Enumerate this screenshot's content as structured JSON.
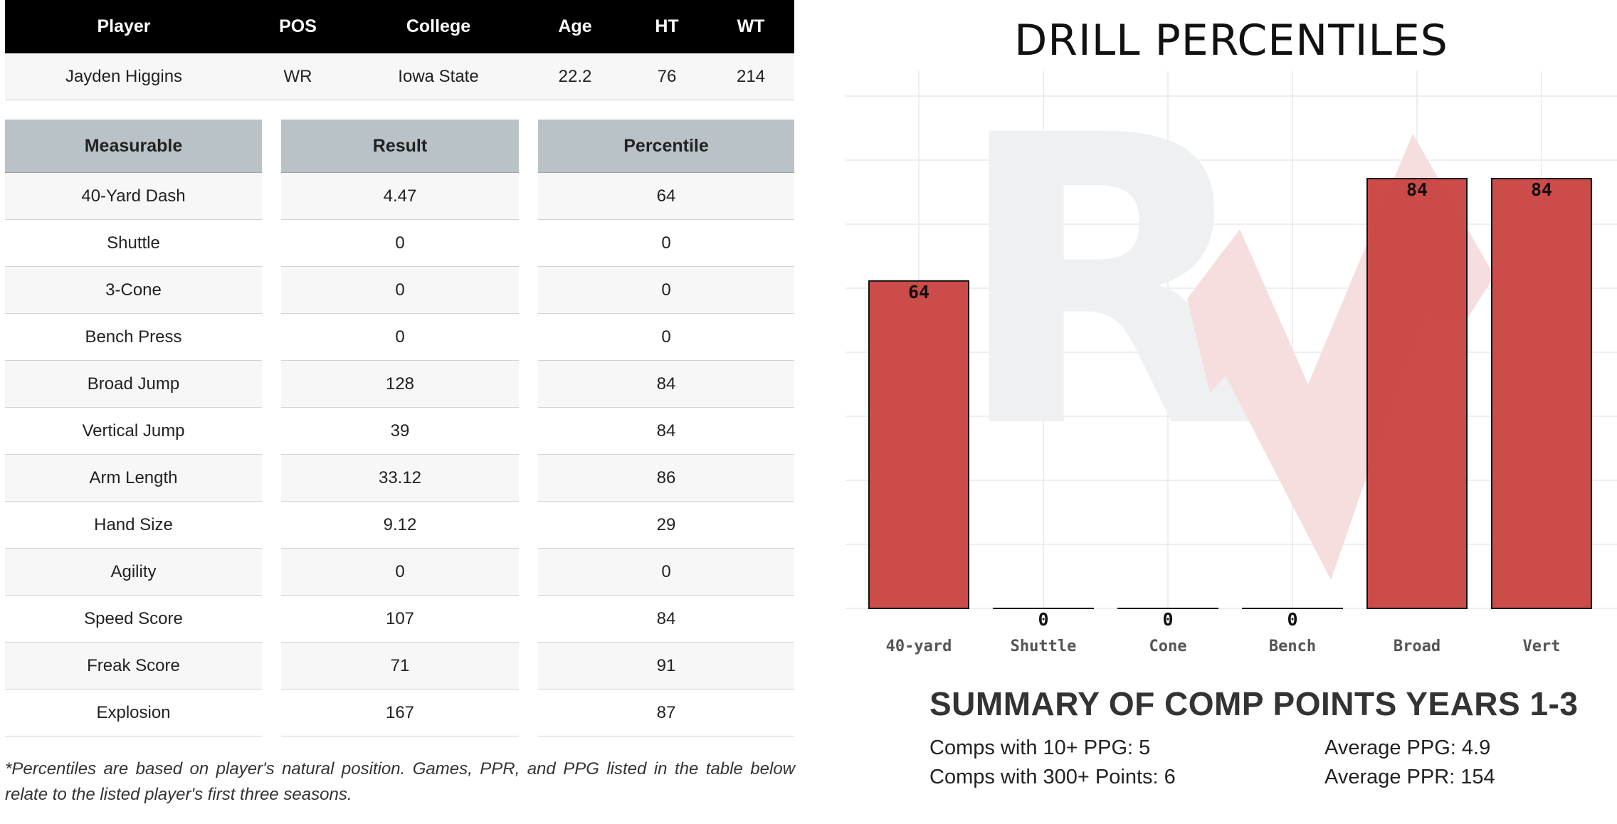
{
  "player_table": {
    "headers": [
      "Player",
      "POS",
      "College",
      "Age",
      "HT",
      "WT"
    ],
    "row": [
      "Jayden Higgins",
      "WR",
      "Iowa State",
      "22.2",
      "76",
      "214"
    ]
  },
  "measurables": {
    "headers": [
      "Measurable",
      "Result",
      "Percentile"
    ],
    "rows": [
      [
        "40-Yard Dash",
        "4.47",
        "64"
      ],
      [
        "Shuttle",
        "0",
        "0"
      ],
      [
        "3-Cone",
        "0",
        "0"
      ],
      [
        "Bench Press",
        "0",
        "0"
      ],
      [
        "Broad Jump",
        "128",
        "84"
      ],
      [
        "Vertical Jump",
        "39",
        "84"
      ],
      [
        "Arm Length",
        "33.12",
        "86"
      ],
      [
        "Hand Size",
        "9.12",
        "29"
      ],
      [
        "Agility",
        "0",
        "0"
      ],
      [
        "Speed Score",
        "107",
        "84"
      ],
      [
        "Freak Score",
        "71",
        "91"
      ],
      [
        "Explosion",
        "167",
        "87"
      ]
    ]
  },
  "footnote": "*Percentiles are based on player's natural position. Games, PPR, and PPG listed in the table below relate to the listed player's first three seasons.",
  "chart_data": {
    "type": "bar",
    "title": "DRILL PERCENTILES",
    "categories": [
      "40-yard",
      "Shuttle",
      "Cone",
      "Bench",
      "Broad",
      "Vert"
    ],
    "values": [
      64,
      0,
      0,
      0,
      84,
      84
    ],
    "data_labels": [
      "64",
      "0",
      "0",
      "0",
      "84",
      "84"
    ],
    "ylim": [
      0,
      100
    ],
    "grid": true,
    "bar_color": "#c94542",
    "watermark": "RV"
  },
  "summary": {
    "title": "SUMMARY OF COMP POINTS YEARS 1-3",
    "comps_10_ppg": "Comps with 10+ PPG: 5",
    "comps_300_points": "Comps with 300+ Points: 6",
    "average_ppg": "Average PPG: 4.9",
    "average_ppr": "Average PPR: 154"
  }
}
